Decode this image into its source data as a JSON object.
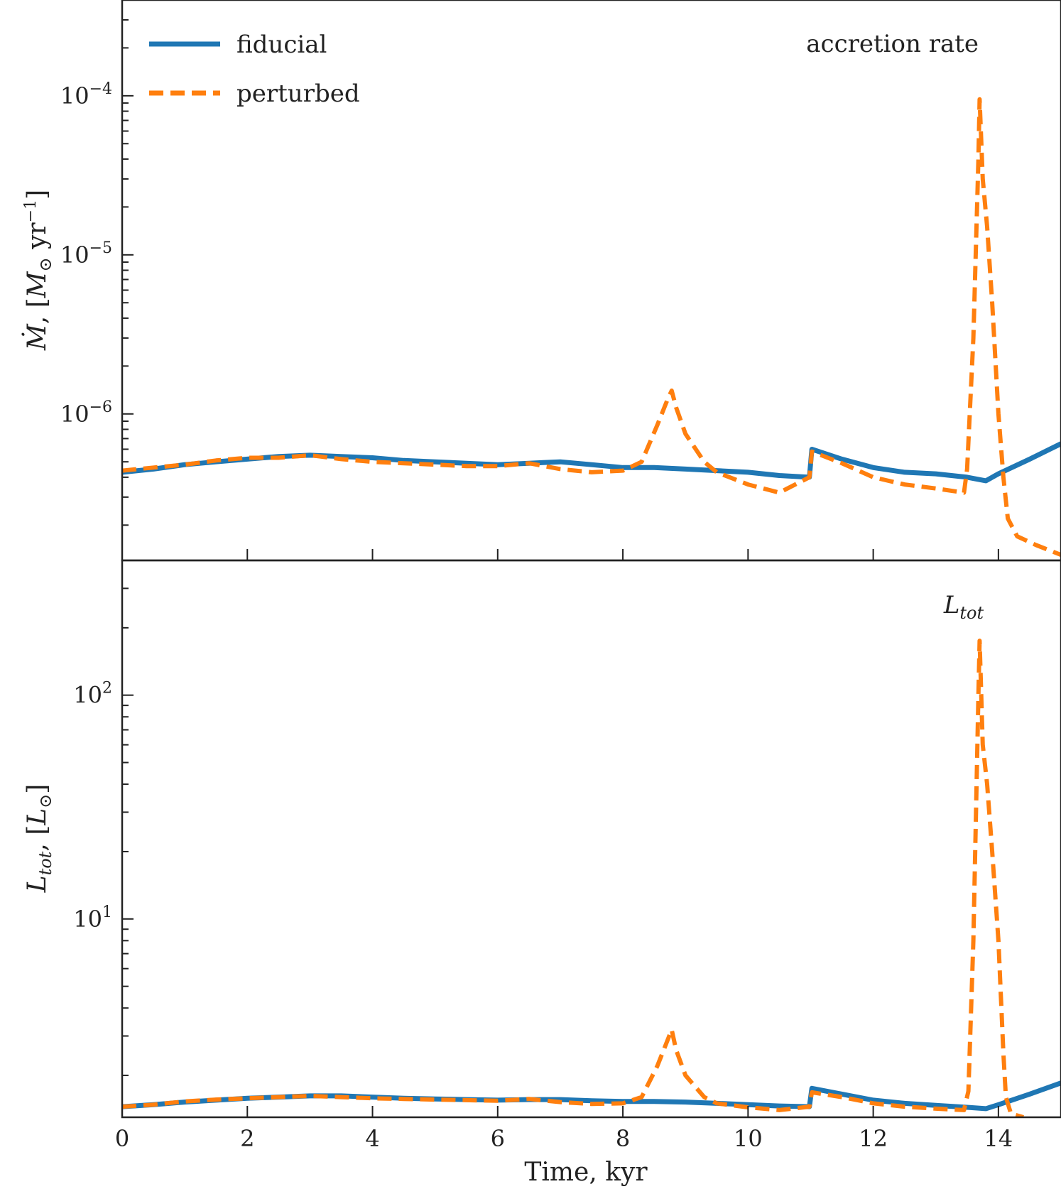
{
  "chart_data": {
    "type": "line",
    "x_label": "Time, kyr",
    "xlim": [
      0,
      15
    ],
    "x_ticks": [
      0,
      2,
      4,
      6,
      8,
      10,
      12,
      14
    ],
    "legend": {
      "placement": "top-left",
      "entries": [
        {
          "name": "fiducial",
          "color": "#1f77b4",
          "style": "solid"
        },
        {
          "name": "perturbed",
          "color": "#ff7f0e",
          "style": "dashed"
        }
      ]
    },
    "panels": [
      {
        "id": "accretion",
        "ylabel": "Ṁ, [M⊙ yr⁻¹]",
        "annotation": "accretion rate",
        "yscale": "log",
        "ylim": [
          1.2e-07,
          0.0004
        ],
        "y_ticks": [
          {
            "value": 1e-06,
            "base": "10",
            "exp": "−6"
          },
          {
            "value": 1e-05,
            "base": "10",
            "exp": "−5"
          },
          {
            "value": 0.0001,
            "base": "10",
            "exp": "−4"
          }
        ],
        "series": [
          {
            "name": "fiducial",
            "x": [
              0,
              0.5,
              1,
              1.5,
              2,
              2.5,
              3,
              3.5,
              4,
              4.5,
              5,
              5.5,
              6,
              6.5,
              7,
              7.5,
              8,
              8.5,
              9,
              9.5,
              10,
              10.5,
              10.98,
              11.02,
              11.5,
              12,
              12.5,
              13,
              13.5,
              13.8,
              14,
              14.5,
              15
            ],
            "y": [
              4.3e-07,
              4.5e-07,
              4.8e-07,
              5e-07,
              5.2e-07,
              5.4e-07,
              5.5e-07,
              5.4e-07,
              5.3e-07,
              5.1e-07,
              5e-07,
              4.9e-07,
              4.8e-07,
              4.9e-07,
              5e-07,
              4.8e-07,
              4.6e-07,
              4.6e-07,
              4.5e-07,
              4.4e-07,
              4.3e-07,
              4.1e-07,
              4e-07,
              6e-07,
              5.2e-07,
              4.6e-07,
              4.3e-07,
              4.2e-07,
              4e-07,
              3.8e-07,
              4.2e-07,
              5.2e-07,
              6.5e-07
            ]
          },
          {
            "name": "perturbed",
            "x": [
              0,
              0.5,
              1,
              1.5,
              2,
              2.5,
              3,
              3.5,
              4,
              4.5,
              5,
              5.5,
              6,
              6.5,
              7,
              7.5,
              8,
              8.3,
              8.55,
              8.72,
              8.78,
              8.85,
              9.0,
              9.3,
              9.5,
              10,
              10.5,
              10.98,
              11.02,
              11.5,
              12,
              12.5,
              13,
              13.45,
              13.5,
              13.6,
              13.68,
              13.7,
              13.75,
              13.82,
              13.9,
              14.0,
              14.08,
              14.15,
              14.3,
              14.6,
              15
            ],
            "y": [
              4.4e-07,
              4.6e-07,
              4.8e-07,
              5.1e-07,
              5.3e-07,
              5.3e-07,
              5.5e-07,
              5.2e-07,
              5e-07,
              4.9e-07,
              4.8e-07,
              4.7e-07,
              4.7e-07,
              4.9e-07,
              4.5e-07,
              4.3e-07,
              4.4e-07,
              5e-07,
              8.5e-07,
              1.25e-06,
              1.4e-06,
              1.1e-06,
              7.5e-07,
              5e-07,
              4.3e-07,
              3.6e-07,
              3.2e-07,
              4e-07,
              5.8e-07,
              4.9e-07,
              4e-07,
              3.6e-07,
              3.4e-07,
              3.2e-07,
              4.5e-07,
              3e-06,
              4e-05,
              9.5e-05,
              3e-05,
              1.5e-05,
              5e-06,
              1e-06,
              4e-07,
              2.2e-07,
              1.7e-07,
              1.5e-07,
              1.3e-07
            ]
          }
        ]
      },
      {
        "id": "luminosity",
        "ylabel": "Ltot, [L⊙]",
        "annotation": "Ltot",
        "yscale": "log",
        "ylim": [
          1.3,
          400
        ],
        "y_ticks": [
          {
            "value": 10,
            "base": "10",
            "exp": "1"
          },
          {
            "value": 100,
            "base": "10",
            "exp": "2"
          }
        ],
        "series": [
          {
            "name": "fiducial",
            "x": [
              0,
              0.5,
              1,
              1.5,
              2,
              2.5,
              3,
              3.5,
              4,
              4.5,
              5,
              5.5,
              6,
              6.5,
              7,
              7.5,
              8,
              8.5,
              9,
              9.5,
              10,
              10.5,
              10.98,
              11.02,
              11.5,
              12,
              12.5,
              13,
              13.5,
              13.8,
              14,
              14.5,
              15
            ],
            "y": [
              1.45,
              1.48,
              1.52,
              1.55,
              1.58,
              1.6,
              1.62,
              1.62,
              1.6,
              1.58,
              1.57,
              1.56,
              1.55,
              1.56,
              1.56,
              1.54,
              1.53,
              1.53,
              1.52,
              1.5,
              1.48,
              1.46,
              1.45,
              1.75,
              1.65,
              1.55,
              1.5,
              1.47,
              1.44,
              1.42,
              1.48,
              1.65,
              1.85
            ]
          },
          {
            "name": "perturbed",
            "x": [
              0,
              0.5,
              1,
              1.5,
              2,
              2.5,
              3,
              3.5,
              4,
              4.5,
              5,
              5.5,
              6,
              6.5,
              7,
              7.5,
              8,
              8.3,
              8.55,
              8.72,
              8.78,
              8.85,
              9.0,
              9.3,
              9.5,
              10,
              10.5,
              10.98,
              11.02,
              11.5,
              12,
              12.5,
              13,
              13.45,
              13.52,
              13.6,
              13.68,
              13.7,
              13.75,
              13.82,
              13.9,
              14.0,
              14.08,
              14.12,
              14.2,
              14.4
            ],
            "y": [
              1.45,
              1.48,
              1.53,
              1.56,
              1.58,
              1.6,
              1.62,
              1.6,
              1.58,
              1.57,
              1.56,
              1.55,
              1.54,
              1.57,
              1.52,
              1.49,
              1.5,
              1.6,
              2.2,
              2.9,
              3.2,
              2.6,
              2.0,
              1.6,
              1.5,
              1.44,
              1.4,
              1.45,
              1.68,
              1.6,
              1.5,
              1.45,
              1.42,
              1.4,
              1.7,
              8.0,
              100,
              175,
              60,
              40,
              20,
              8.0,
              2.5,
              1.6,
              1.35,
              1.3
            ]
          }
        ]
      }
    ]
  }
}
